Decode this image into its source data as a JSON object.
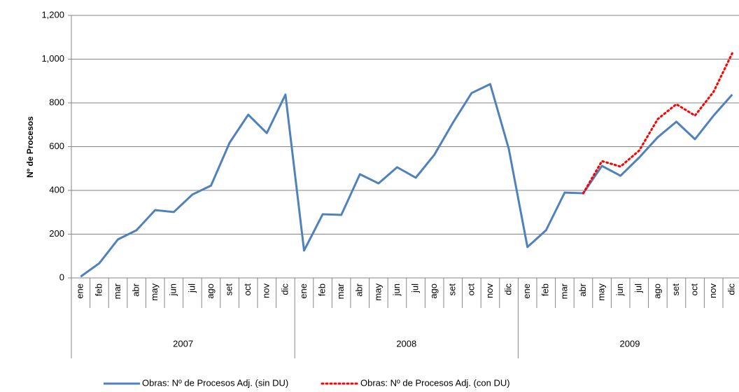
{
  "chart_data": {
    "type": "line",
    "y_label": "Nº de Procesos",
    "categories": [
      "ene",
      "feb",
      "mar",
      "abr",
      "may",
      "jun",
      "jul",
      "ago",
      "set",
      "oct",
      "nov",
      "dic",
      "ene",
      "feb",
      "mar",
      "abr",
      "may",
      "jun",
      "jul",
      "ago",
      "set",
      "oct",
      "nov",
      "dic",
      "ene",
      "feb",
      "mar",
      "abr",
      "may",
      "jun",
      "jul",
      "ago",
      "set",
      "oct",
      "nov",
      "dic"
    ],
    "years": [
      "2007",
      "2008",
      "2009"
    ],
    "series": [
      {
        "name": "Obras: Nº de Procesos Adj. (sin DU)",
        "color": "#4f81bd",
        "style": "solid",
        "values": [
          6,
          67,
          176,
          218,
          310,
          301,
          381,
          422,
          618,
          746,
          662,
          838,
          125,
          291,
          288,
          474,
          432,
          506,
          458,
          563,
          710,
          845,
          886,
          589,
          141,
          218,
          390,
          387,
          512,
          467,
          550,
          643,
          714,
          634,
          742,
          838
        ]
      },
      {
        "name": "Obras: Nº de Procesos Adj. (con DU)",
        "color": "#ff0000",
        "style": "dotted",
        "values": [
          null,
          null,
          null,
          null,
          null,
          null,
          null,
          null,
          null,
          null,
          null,
          null,
          null,
          null,
          null,
          null,
          null,
          null,
          null,
          null,
          null,
          null,
          null,
          null,
          null,
          null,
          null,
          387,
          534,
          509,
          582,
          726,
          794,
          742,
          851,
          1027
        ]
      }
    ],
    "ylim": [
      0,
      1200
    ],
    "yticks": [
      0,
      200,
      400,
      600,
      800,
      {
        "value": 1000,
        "label": "1,000"
      },
      {
        "value": 1200,
        "label": "1,200"
      }
    ],
    "grid": true,
    "legend": "bottom"
  }
}
